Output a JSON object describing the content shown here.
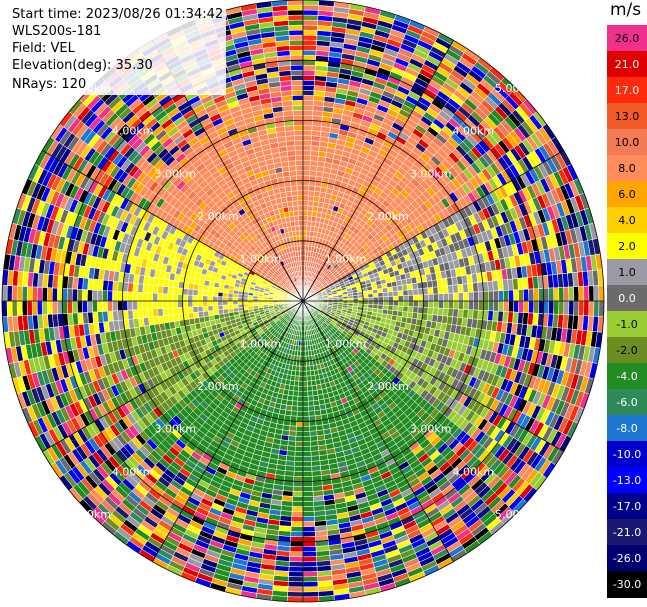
{
  "header": {
    "start_time": "Start time: 2023/08/26 01:34:42",
    "instrument": "WLS200s-181",
    "field": "Field: VEL",
    "elevation": "Elevation(deg): 35.30",
    "nrays": "NRays: 120"
  },
  "colorbar": {
    "unit": "m/s",
    "levels": [
      {
        "label": "26.0",
        "color": "#f0308c"
      },
      {
        "label": "21.0",
        "color": "#e00000"
      },
      {
        "label": "17.0",
        "color": "#ff2a0a"
      },
      {
        "label": "13.0",
        "color": "#f25a28"
      },
      {
        "label": "10.0",
        "color": "#f27a55"
      },
      {
        "label": "8.0",
        "color": "#ff8c5a"
      },
      {
        "label": "6.0",
        "color": "#ffa500"
      },
      {
        "label": "4.0",
        "color": "#ffd000"
      },
      {
        "label": "2.0",
        "color": "#ffff00"
      },
      {
        "label": "1.0",
        "color": "#9a9aa4"
      },
      {
        "label": "0.0",
        "color": "#6b6b6b"
      },
      {
        "label": "-1.0",
        "color": "#9acd32"
      },
      {
        "label": "-2.0",
        "color": "#6b8e23"
      },
      {
        "label": "-4.0",
        "color": "#228b22"
      },
      {
        "label": "-6.0",
        "color": "#2e8b57"
      },
      {
        "label": "-8.0",
        "color": "#1e78d2"
      },
      {
        "label": "-10.0",
        "color": "#0000cd"
      },
      {
        "label": "-13.0",
        "color": "#0000ff"
      },
      {
        "label": "-17.0",
        "color": "#00008b"
      },
      {
        "label": "-21.0",
        "color": "#191970"
      },
      {
        "label": "-26.0",
        "color": "#000070"
      },
      {
        "label": "-30.0",
        "color": "#000000"
      }
    ]
  },
  "chart_data": {
    "type": "heatmap",
    "projection": "polar PPI",
    "field": "VEL",
    "nrays": 120,
    "range_rings_km": [
      1,
      2,
      3,
      4,
      5
    ],
    "range_ring_labels": [
      "1.00km",
      "2.00km",
      "3.00km",
      "4.00km",
      "5.00km"
    ],
    "spokes_deg": [
      0,
      30,
      60,
      90,
      120,
      150,
      180,
      210,
      240,
      270,
      300,
      330
    ],
    "max_range_km": 5.0,
    "sectors": [
      {
        "azimuth_from_deg": 300,
        "azimuth_to_deg": 60,
        "velocity_ms": 8.0
      },
      {
        "azimuth_from_deg": 60,
        "azimuth_to_deg": 90,
        "velocity_ms": 1.0
      },
      {
        "azimuth_from_deg": 90,
        "azimuth_to_deg": 130,
        "velocity_ms": -1.0
      },
      {
        "azimuth_from_deg": 130,
        "azimuth_to_deg": 230,
        "velocity_ms": -4.0
      },
      {
        "azimuth_from_deg": 230,
        "azimuth_to_deg": 260,
        "velocity_ms": -2.0
      },
      {
        "azimuth_from_deg": 260,
        "azimuth_to_deg": 300,
        "velocity_ms": 2.0
      }
    ]
  }
}
